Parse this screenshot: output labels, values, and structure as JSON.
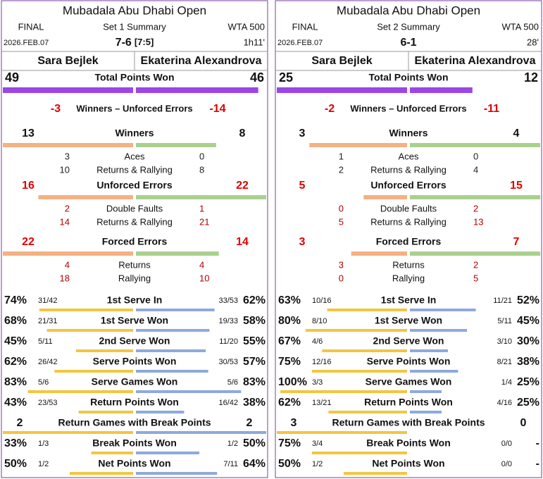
{
  "panels": [
    {
      "title": "Mubadala Abu Dhabi Open",
      "round": "FINAL",
      "set_label": "Set 1 Summary",
      "category": "WTA 500",
      "date": "2026.FEB.07",
      "score": "7-6",
      "tiebreak": "[7:5]",
      "duration": "1h11'",
      "players": [
        "Sara Bejlek",
        "Ekaterina Alexandrova"
      ],
      "total_points": {
        "label": "Total Points Won",
        "values": [
          49,
          46
        ]
      },
      "net": {
        "label": "Winners – Unforced Errors",
        "values": [
          -3,
          -14
        ]
      },
      "groups": [
        {
          "label": "Winners",
          "values": [
            13,
            8
          ],
          "rows": [
            {
              "label": "Aces",
              "values": [
                3,
                0
              ]
            },
            {
              "label": "Returns & Rallying",
              "values": [
                10,
                8
              ]
            }
          ]
        },
        {
          "label": "Unforced Errors",
          "values": [
            16,
            22
          ],
          "rows": [
            {
              "label": "Double Faults",
              "values": [
                2,
                1
              ]
            },
            {
              "label": "Returns & Rallying",
              "values": [
                14,
                21
              ]
            }
          ]
        },
        {
          "label": "Forced Errors",
          "values": [
            22,
            14
          ],
          "rows": [
            {
              "label": "Returns",
              "values": [
                4,
                4
              ]
            },
            {
              "label": "Rallying",
              "values": [
                18,
                10
              ]
            }
          ]
        }
      ],
      "stats": [
        {
          "label": "1st Serve In",
          "values": [
            74,
            62
          ],
          "value_labels": [
            "74%",
            "62%"
          ],
          "details": [
            "31/42",
            "33/53"
          ]
        },
        {
          "label": "1st Serve Won",
          "values": [
            68,
            58
          ],
          "value_labels": [
            "68%",
            "58%"
          ],
          "details": [
            "21/31",
            "19/33"
          ]
        },
        {
          "label": "2nd Serve Won",
          "values": [
            45,
            55
          ],
          "value_labels": [
            "45%",
            "55%"
          ],
          "details": [
            "5/11",
            "11/20"
          ]
        },
        {
          "label": "Serve Points Won",
          "values": [
            62,
            57
          ],
          "value_labels": [
            "62%",
            "57%"
          ],
          "details": [
            "26/42",
            "30/53"
          ]
        },
        {
          "label": "Serve Games Won",
          "values": [
            83,
            83
          ],
          "value_labels": [
            "83%",
            "83%"
          ],
          "details": [
            "5/6",
            "5/6"
          ]
        },
        {
          "label": "Return Points Won",
          "values": [
            43,
            38
          ],
          "value_labels": [
            "43%",
            "38%"
          ],
          "details": [
            "23/53",
            "16/42"
          ]
        },
        {
          "label": "Return Games with Break Points",
          "values": [
            2,
            2
          ]
        },
        {
          "label": "Break Points Won",
          "values": [
            33,
            50
          ],
          "value_labels": [
            "33%",
            "50%"
          ],
          "details": [
            "1/3",
            "1/2"
          ]
        },
        {
          "label": "Net Points Won",
          "values": [
            50,
            64
          ],
          "value_labels": [
            "50%",
            "64%"
          ],
          "details": [
            "1/2",
            "7/11"
          ]
        }
      ]
    },
    {
      "title": "Mubadala Abu Dhabi Open",
      "round": "FINAL",
      "set_label": "Set 2 Summary",
      "category": "WTA 500",
      "date": "2026.FEB.07",
      "score": "6-1",
      "duration": "28'",
      "players": [
        "Sara Bejlek",
        "Ekaterina Alexandrova"
      ],
      "total_points": {
        "label": "Total Points Won",
        "values": [
          25,
          12
        ]
      },
      "net": {
        "label": "Winners – Unforced Errors",
        "values": [
          -2,
          -11
        ]
      },
      "groups": [
        {
          "label": "Winners",
          "values": [
            3,
            4
          ],
          "rows": [
            {
              "label": "Aces",
              "values": [
                1,
                0
              ]
            },
            {
              "label": "Returns & Rallying",
              "values": [
                2,
                4
              ]
            }
          ]
        },
        {
          "label": "Unforced Errors",
          "values": [
            5,
            15
          ],
          "rows": [
            {
              "label": "Double Faults",
              "values": [
                0,
                2
              ]
            },
            {
              "label": "Returns & Rallying",
              "values": [
                5,
                13
              ]
            }
          ]
        },
        {
          "label": "Forced Errors",
          "values": [
            3,
            7
          ],
          "rows": [
            {
              "label": "Returns",
              "values": [
                3,
                2
              ]
            },
            {
              "label": "Rallying",
              "values": [
                0,
                5
              ]
            }
          ]
        }
      ],
      "stats": [
        {
          "label": "1st Serve In",
          "values": [
            63,
            52
          ],
          "value_labels": [
            "63%",
            "52%"
          ],
          "details": [
            "10/16",
            "11/21"
          ]
        },
        {
          "label": "1st Serve Won",
          "values": [
            80,
            45
          ],
          "value_labels": [
            "80%",
            "45%"
          ],
          "details": [
            "8/10",
            "5/11"
          ]
        },
        {
          "label": "2nd Serve Won",
          "values": [
            67,
            30
          ],
          "value_labels": [
            "67%",
            "30%"
          ],
          "details": [
            "4/6",
            "3/10"
          ]
        },
        {
          "label": "Serve Points Won",
          "values": [
            75,
            38
          ],
          "value_labels": [
            "75%",
            "38%"
          ],
          "details": [
            "12/16",
            "8/21"
          ]
        },
        {
          "label": "Serve Games Won",
          "values": [
            100,
            25
          ],
          "value_labels": [
            "100%",
            "25%"
          ],
          "details": [
            "3/3",
            "1/4"
          ]
        },
        {
          "label": "Return Points Won",
          "values": [
            62,
            25
          ],
          "value_labels": [
            "62%",
            "25%"
          ],
          "details": [
            "13/21",
            "4/16"
          ]
        },
        {
          "label": "Return Games with Break Points",
          "values": [
            3,
            0
          ]
        },
        {
          "label": "Break Points Won",
          "values": [
            75,
            null
          ],
          "value_labels": [
            "75%",
            "-"
          ],
          "details": [
            "3/4",
            "0/0"
          ]
        },
        {
          "label": "Net Points Won",
          "values": [
            50,
            null
          ],
          "value_labels": [
            "50%",
            "-"
          ],
          "details": [
            "1/2",
            "0/0"
          ]
        }
      ]
    }
  ]
}
